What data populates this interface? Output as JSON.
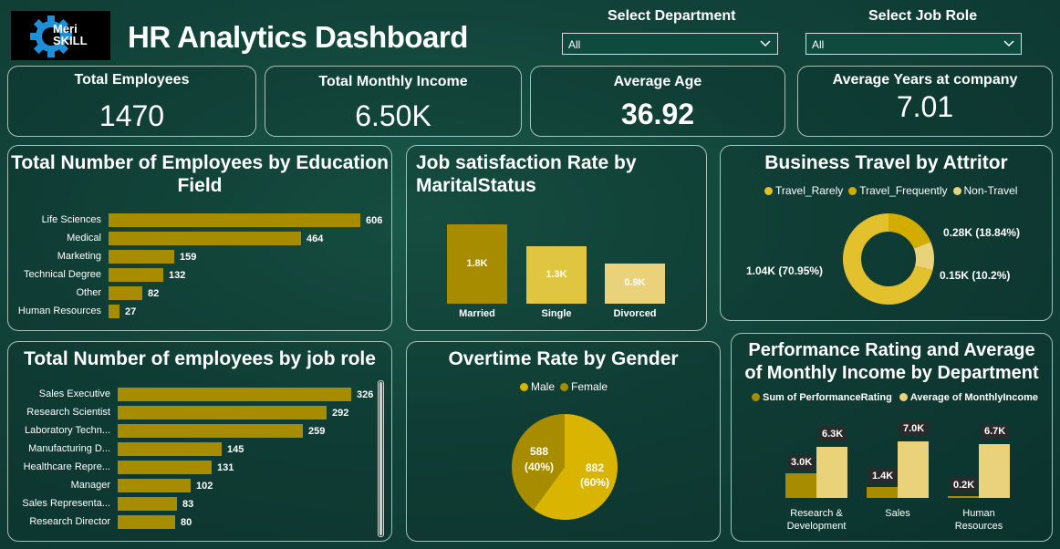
{
  "header": {
    "logo_text_1": "Meri",
    "logo_text_2": "SKILL",
    "title": "HR Analytics Dashboard",
    "department_label": "Select Department",
    "department_value": "All",
    "jobrole_label": "Select Job Role",
    "jobrole_value": "All"
  },
  "kpis": {
    "total_employees_label": "Total Employees",
    "total_employees_value": "1470",
    "monthly_income_label": "Total Monthly Income",
    "monthly_income_value": "6.50K",
    "average_age_label": "Average Age",
    "average_age_value": "36.92",
    "years_label": "Average Years at company",
    "years_value": "7.01"
  },
  "education": {
    "title_1": "Total Number of Employees by Education",
    "title_2": "Field",
    "max": 606,
    "items": [
      {
        "label": "Life Sciences",
        "value": 606,
        "display": "606"
      },
      {
        "label": "Medical",
        "value": 464,
        "display": "464"
      },
      {
        "label": "Marketing",
        "value": 159,
        "display": "159"
      },
      {
        "label": "Technical Degree",
        "value": 132,
        "display": "132"
      },
      {
        "label": "Other",
        "value": 82,
        "display": "82"
      },
      {
        "label": "Human Resources",
        "value": 27,
        "display": "27"
      }
    ]
  },
  "jobsat": {
    "title_1": "Job satisfaction Rate by",
    "title_2": "MaritalStatus",
    "max": 1.8,
    "items": [
      {
        "label": "Married",
        "value": 1.8,
        "display": "1.8K",
        "color": "#a88c00"
      },
      {
        "label": "Single",
        "value": 1.3,
        "display": "1.3K",
        "color": "#e0c640"
      },
      {
        "label": "Divorced",
        "value": 0.9,
        "display": "0.9K",
        "color": "#ead27a"
      }
    ]
  },
  "travel": {
    "title": "Business Travel by Attritor",
    "legend": [
      {
        "label": "Travel_Rarely",
        "color": "#e3c12d"
      },
      {
        "label": "Travel_Frequently",
        "color": "#d2ad00"
      },
      {
        "label": "Non-Travel",
        "color": "#ead27a"
      }
    ],
    "slices": [
      {
        "label": "Travel_Rarely",
        "value": 70.95,
        "display": "1.04K (70.95%)",
        "color": "#e3c12d"
      },
      {
        "label": "Travel_Frequently",
        "value": 18.84,
        "display": "0.28K (18.84%)",
        "color": "#d2ad00"
      },
      {
        "label": "Non-Travel",
        "value": 10.2,
        "display": "0.15K (10.2%)",
        "color": "#ead27a"
      }
    ]
  },
  "jobrole": {
    "title": "Total Number of employees by job role",
    "max": 326,
    "items": [
      {
        "label": "Sales Executive",
        "value": 326,
        "display": "326"
      },
      {
        "label": "Research Scientist",
        "value": 292,
        "display": "292"
      },
      {
        "label": "Laboratory Techn...",
        "value": 259,
        "display": "259"
      },
      {
        "label": "Manufacturing D...",
        "value": 145,
        "display": "145"
      },
      {
        "label": "Healthcare Repre...",
        "value": 131,
        "display": "131"
      },
      {
        "label": "Manager",
        "value": 102,
        "display": "102"
      },
      {
        "label": "Sales Representa...",
        "value": 83,
        "display": "83"
      },
      {
        "label": "Research Director",
        "value": 80,
        "display": "80"
      }
    ]
  },
  "overtime": {
    "title": "Overtime Rate by Gender",
    "legend": [
      {
        "label": "Male",
        "color": "#d9b400"
      },
      {
        "label": "Female",
        "color": "#a88c00"
      }
    ],
    "slices": [
      {
        "label": "Male",
        "value": 882,
        "display_1": "882",
        "display_2": "(60%)",
        "color": "#d9b400"
      },
      {
        "label": "Female",
        "value": 588,
        "display_1": "588",
        "display_2": "(40%)",
        "color": "#a88c00"
      }
    ]
  },
  "performance": {
    "title_1": "Performance Rating and Average",
    "title_2": "of Monthly Income by Department",
    "legend": [
      {
        "label": "Sum of PerformanceRating",
        "color": "#a88c00"
      },
      {
        "label": "Average of MonthlyIncome",
        "color": "#ead27a"
      }
    ],
    "max": 7.0,
    "groups": [
      {
        "label_1": "Research &",
        "label_2": "Development",
        "rating": 3.0,
        "rating_display": "3.0K",
        "income": 6.3,
        "income_display": "6.3K"
      },
      {
        "label_1": "Sales",
        "label_2": "",
        "rating": 1.4,
        "rating_display": "1.4K",
        "income": 7.0,
        "income_display": "7.0K"
      },
      {
        "label_1": "Human",
        "label_2": "Resources",
        "rating": 0.2,
        "rating_display": "0.2K",
        "income": 6.7,
        "income_display": "6.7K"
      }
    ]
  },
  "chart_data": [
    {
      "type": "bar",
      "title": "Total Number of Employees by Education Field",
      "categories": [
        "Life Sciences",
        "Medical",
        "Marketing",
        "Technical Degree",
        "Other",
        "Human Resources"
      ],
      "values": [
        606,
        464,
        159,
        132,
        82,
        27
      ]
    },
    {
      "type": "bar",
      "title": "Job satisfaction Rate by MaritalStatus",
      "categories": [
        "Married",
        "Single",
        "Divorced"
      ],
      "values": [
        1800,
        1300,
        900
      ]
    },
    {
      "type": "pie",
      "title": "Business Travel by Attritor",
      "categories": [
        "Travel_Rarely",
        "Travel_Frequently",
        "Non-Travel"
      ],
      "values": [
        1040,
        280,
        150
      ]
    },
    {
      "type": "bar",
      "title": "Total Number of employees by job role",
      "categories": [
        "Sales Executive",
        "Research Scientist",
        "Laboratory Techn...",
        "Manufacturing D...",
        "Healthcare Repre...",
        "Manager",
        "Sales Representa...",
        "Research Director"
      ],
      "values": [
        326,
        292,
        259,
        145,
        131,
        102,
        83,
        80
      ]
    },
    {
      "type": "pie",
      "title": "Overtime Rate by Gender",
      "categories": [
        "Male",
        "Female"
      ],
      "values": [
        882,
        588
      ]
    },
    {
      "type": "bar",
      "title": "Performance Rating and Average of Monthly Income by Department",
      "categories": [
        "Research & Development",
        "Sales",
        "Human Resources"
      ],
      "series": [
        {
          "name": "Sum of PerformanceRating",
          "values": [
            3000,
            1400,
            200
          ]
        },
        {
          "name": "Average of MonthlyIncome",
          "values": [
            6300,
            7000,
            6700
          ]
        }
      ]
    }
  ]
}
